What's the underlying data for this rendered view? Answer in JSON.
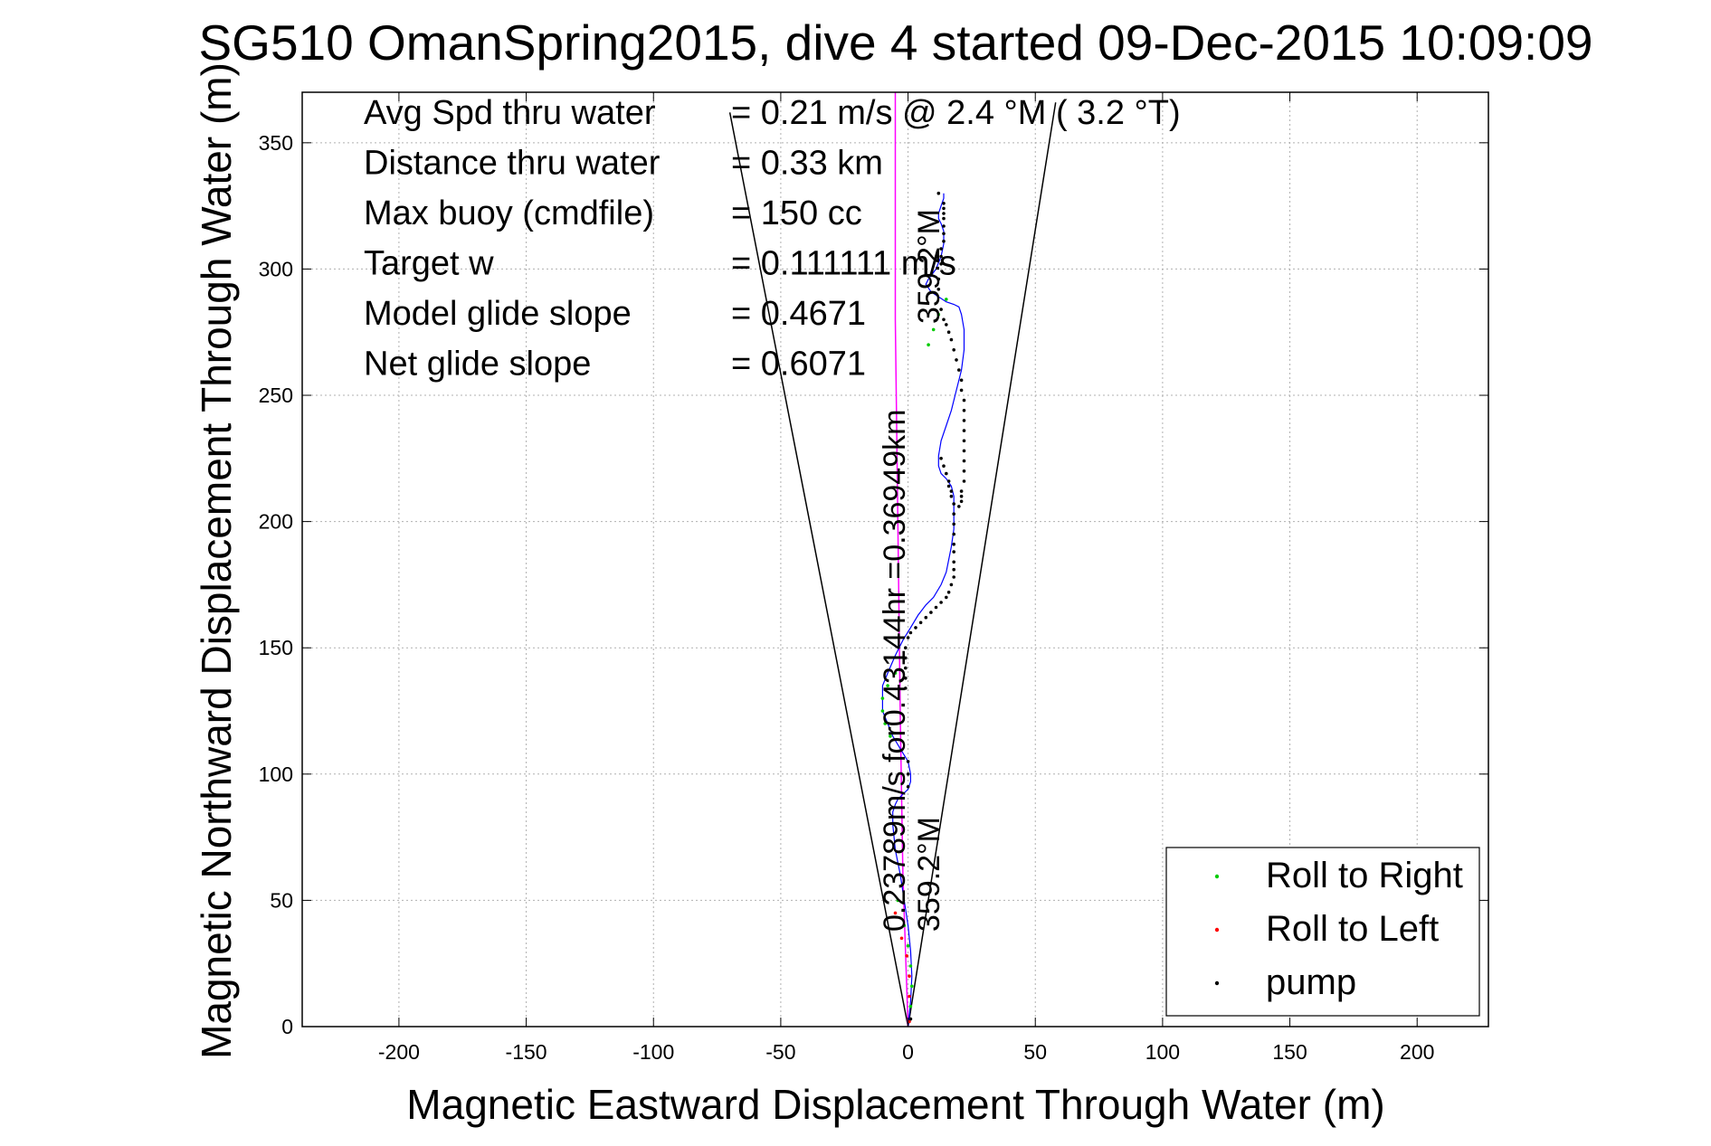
{
  "chart_data": {
    "type": "scatter",
    "title": "SG510 OmanSpring2015, dive 4 started 09-Dec-2015 10:09:09",
    "xlabel": "Magnetic Eastward Displacement Through Water (m)",
    "ylabel": "Magnetic Northward Displacement Through Water (m)",
    "xlim": [
      -238,
      228
    ],
    "ylim": [
      0,
      370
    ],
    "xticks": [
      -200,
      -150,
      -100,
      -50,
      0,
      50,
      100,
      150,
      200
    ],
    "yticks": [
      0,
      50,
      100,
      150,
      200,
      250,
      300,
      350
    ],
    "grid": true,
    "legend_position": "bottom-right",
    "stats": [
      {
        "label": "Avg Spd thru water",
        "value": "=  0.21 m/s @   2.4 °M (  3.2 °T)"
      },
      {
        "label": "Distance thru water",
        "value": "=  0.33 km"
      },
      {
        "label": "Max buoy (cmdfile)",
        "value": "= 150 cc"
      },
      {
        "label": "Target w",
        "value": "= 0.111111 m/s"
      },
      {
        "label": "Model glide slope",
        "value": "= 0.4671"
      },
      {
        "label": "Net glide slope",
        "value": "= 0.6071"
      }
    ],
    "annotations": [
      {
        "text": "0.23789m/s for0.43144hr =0.36949km",
        "x": -2,
        "y": 35,
        "rotation": -90
      },
      {
        "text": "359.2°M",
        "x": 12,
        "y": 35,
        "rotation": -90
      },
      {
        "text": "359.2°M",
        "x": 12,
        "y": 280,
        "rotation": -90
      }
    ],
    "series": [
      {
        "name": "Roll to Right",
        "color": "#00cc00",
        "x": [
          1,
          1.5,
          1,
          0,
          -1.5,
          -4,
          -7,
          -9,
          -10,
          -10,
          -8,
          -5,
          8,
          10,
          12,
          15
        ],
        "y": [
          8,
          16,
          24,
          32,
          40,
          50,
          115,
          120,
          125,
          130,
          135,
          140,
          270,
          276,
          282,
          288
        ]
      },
      {
        "name": "Roll to Left",
        "color": "#ff0000",
        "x": [
          0.5,
          0.5,
          0.5,
          -0.5,
          -2.5,
          -5
        ],
        "y": [
          2,
          12,
          20,
          28,
          35,
          45
        ]
      },
      {
        "name": "pump",
        "color": "#000000",
        "x": [
          1,
          14,
          14,
          14,
          14,
          14,
          14,
          14,
          13,
          13,
          13,
          12,
          12,
          13,
          14,
          15,
          16,
          17,
          18,
          19,
          20,
          21,
          21,
          22,
          22,
          22,
          22,
          22,
          22,
          22,
          22,
          22,
          21,
          21,
          21,
          20,
          12,
          13,
          14,
          15,
          16,
          16,
          17,
          17,
          18,
          18,
          18,
          18,
          18,
          18,
          18,
          18,
          18,
          17,
          16,
          15,
          13,
          11,
          9,
          7,
          5,
          3,
          1,
          0,
          -1,
          -1,
          -1,
          -1,
          -1,
          0,
          0,
          0
        ],
        "y": [
          3,
          326,
          324,
          322,
          320,
          317,
          314,
          311,
          308,
          305,
          302,
          296,
          292,
          284,
          280,
          278,
          275,
          272,
          268,
          264,
          260,
          256,
          252,
          248,
          244,
          240,
          236,
          232,
          228,
          224,
          220,
          216,
          212,
          210,
          208,
          206,
          330,
          225,
          222,
          219,
          216,
          214,
          212,
          210,
          207,
          203,
          199,
          195,
          191,
          188,
          184,
          181,
          178,
          175,
          172,
          170,
          168,
          166,
          164,
          162,
          160,
          158,
          156,
          154,
          150,
          146,
          142,
          138,
          134,
          105,
          100,
          95
        ]
      }
    ],
    "lines": {
      "track": {
        "color": "#0000ff",
        "x": [
          0,
          1,
          1.5,
          1,
          0,
          -1.5,
          -3,
          -5,
          -6,
          -6,
          -5,
          -4,
          -2,
          0,
          1,
          1,
          0,
          -3,
          -6,
          -8,
          -10,
          -10,
          -8,
          -5,
          -2,
          1,
          4,
          7,
          10,
          13,
          15,
          16,
          17,
          18,
          18,
          18,
          17,
          15,
          13,
          12,
          12,
          13,
          15,
          17,
          19,
          21,
          22,
          22,
          21,
          20,
          18,
          15,
          12,
          9,
          7,
          8,
          11,
          13,
          14,
          14,
          13,
          12,
          12,
          13,
          14,
          14
        ],
        "y": [
          0,
          10,
          20,
          30,
          40,
          50,
          60,
          70,
          80,
          85,
          88,
          90,
          92,
          94,
          97,
          100,
          105,
          110,
          115,
          120,
          125,
          135,
          140,
          147,
          153,
          158,
          163,
          167,
          170,
          175,
          180,
          185,
          190,
          197,
          204,
          210,
          214,
          217,
          219,
          222,
          226,
          232,
          238,
          244,
          252,
          260,
          268,
          276,
          282,
          285,
          286,
          287,
          289,
          291,
          294,
          296,
          300,
          305,
          310,
          315,
          318,
          320,
          322,
          325,
          328,
          330
        ]
      },
      "current": {
        "color": "#ff00ff",
        "x": [
          0,
          -2,
          -3,
          -4,
          -5,
          -5
        ],
        "y": [
          0,
          60,
          120,
          200,
          280,
          370
        ]
      },
      "cone": [
        {
          "color": "#000000",
          "x": [
            0,
            -70
          ],
          "y": [
            0,
            362
          ]
        },
        {
          "color": "#000000",
          "x": [
            0,
            58
          ],
          "y": [
            0,
            366
          ]
        }
      ]
    }
  }
}
